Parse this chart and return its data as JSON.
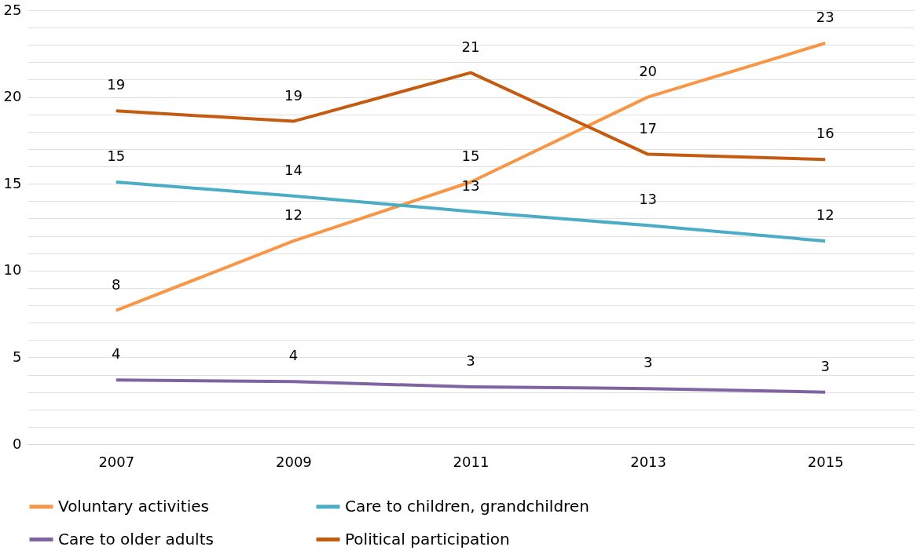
{
  "chart_data": {
    "type": "line",
    "categories": [
      "2007",
      "2009",
      "2011",
      "2013",
      "2015"
    ],
    "series": [
      {
        "name": "Voluntary activities",
        "color": "#f79646",
        "values": [
          7.7,
          11.7,
          15.1,
          20.0,
          23.1
        ],
        "value_labels": [
          "8",
          "12",
          "15",
          "20",
          "23"
        ]
      },
      {
        "name": "Care to children, grandchildren",
        "color": "#4bacc6",
        "values": [
          15.1,
          14.3,
          13.4,
          12.6,
          11.7
        ],
        "value_labels": [
          "15",
          "14",
          "13",
          "13",
          "12"
        ]
      },
      {
        "name": "Care to older adults",
        "color": "#8064a2",
        "values": [
          3.7,
          3.6,
          3.3,
          3.2,
          3.0
        ],
        "value_labels": [
          "4",
          "4",
          "3",
          "3",
          "3"
        ]
      },
      {
        "name": "Political participation",
        "color": "#c55a11",
        "values": [
          19.2,
          18.6,
          21.4,
          16.7,
          16.4
        ],
        "value_labels": [
          "19",
          "19",
          "21",
          "17",
          "16"
        ]
      }
    ],
    "ylim": [
      0,
      25
    ],
    "yticks": [
      0,
      {
        "value": 1,
        "label": null
      },
      {
        "value": 2,
        "label": null
      },
      {
        "value": 3,
        "label": null
      },
      {
        "value": 4,
        "label": null
      },
      5,
      {
        "value": 6,
        "label": null
      },
      {
        "value": 7,
        "label": null
      },
      {
        "value": 8,
        "label": null
      },
      {
        "value": 9,
        "label": null
      },
      10,
      {
        "value": 11,
        "label": null
      },
      {
        "value": 12,
        "label": null
      },
      {
        "value": 13,
        "label": null
      },
      {
        "value": 14,
        "label": null
      },
      15,
      {
        "value": 16,
        "label": null
      },
      {
        "value": 17,
        "label": null
      },
      {
        "value": 18,
        "label": null
      },
      {
        "value": 19,
        "label": null
      },
      20,
      {
        "value": 21,
        "label": null
      },
      {
        "value": 22,
        "label": null
      },
      {
        "value": 23,
        "label": null
      },
      {
        "value": 24,
        "label": null
      },
      25
    ],
    "grid": "y",
    "legend": "bottom",
    "marker": "none",
    "line_style": "solid"
  }
}
